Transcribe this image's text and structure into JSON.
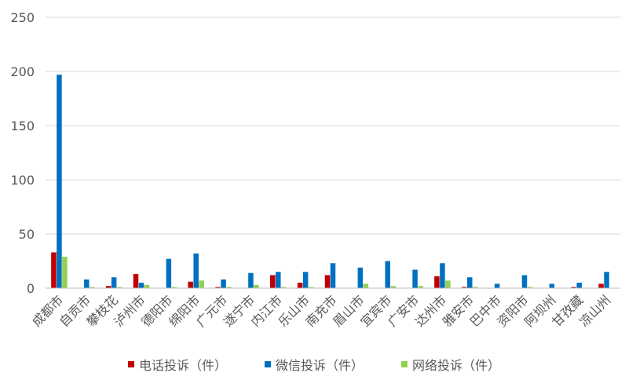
{
  "chart_data": {
    "type": "bar",
    "title": "",
    "xlabel": "",
    "ylabel": "",
    "ylim": [
      0,
      250
    ],
    "yticks": [
      "0",
      "50",
      "100",
      "150",
      "200",
      "250"
    ],
    "grid": true,
    "legend_position": "bottom",
    "categories": [
      "成都市",
      "自贡市",
      "攀枝花",
      "泸州市",
      "德阳市",
      "绵阳市",
      "广元市",
      "遂宁市",
      "内江市",
      "乐山市",
      "南充市",
      "眉山市",
      "宜宾市",
      "广安市",
      "达州市",
      "雅安市",
      "巴中市",
      "资阳市",
      "阿坝州",
      "甘孜藏",
      "凉山州"
    ],
    "series": [
      {
        "name": "电话投诉（件）",
        "color": "#c00000",
        "values": [
          33,
          0,
          2,
          13,
          0,
          6,
          1,
          0,
          12,
          5,
          12,
          0,
          0,
          0,
          11,
          1,
          0,
          0,
          0,
          1,
          4
        ]
      },
      {
        "name": "微信投诉（件）",
        "color": "#0070c0",
        "values": [
          197,
          8,
          10,
          5,
          27,
          32,
          8,
          14,
          15,
          15,
          23,
          19,
          25,
          17,
          23,
          10,
          4,
          12,
          4,
          5,
          15
        ]
      },
      {
        "name": "网络投诉（件）",
        "color": "#92d050",
        "values": [
          29,
          1,
          1,
          3,
          1,
          7,
          1,
          3,
          1,
          1,
          0,
          4,
          2,
          2,
          7,
          1,
          0,
          1,
          0,
          0,
          0
        ]
      }
    ]
  }
}
